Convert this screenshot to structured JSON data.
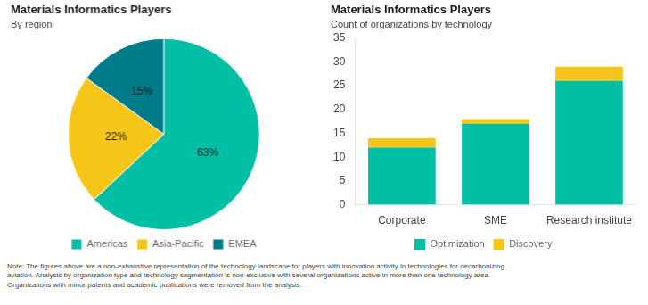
{
  "chart_data": [
    {
      "type": "pie",
      "title": "Materials Informatics Players",
      "subtitle": "By region",
      "categories": [
        "Americas",
        "Asia-Pacific",
        "EMEA"
      ],
      "values": [
        63,
        22,
        15
      ],
      "value_labels": [
        "63%",
        "22%",
        "15%"
      ],
      "colors": [
        "#00BFA5",
        "#F5C518",
        "#007B8A"
      ],
      "data_labels": true,
      "legend": "bottom"
    },
    {
      "type": "bar",
      "title": "Materials Informatics Players",
      "subtitle": "Count of organizations by technology",
      "categories": [
        "Corporate",
        "SME",
        "Research institute"
      ],
      "series": [
        {
          "name": "Optimization",
          "color": "#00BFA5",
          "values": [
            12,
            17,
            26
          ]
        },
        {
          "name": "Discovery",
          "color": "#F5C518",
          "values": [
            2,
            1,
            3
          ]
        }
      ],
      "stacked": true,
      "ylim": [
        0,
        35
      ],
      "yticks": [
        0,
        5,
        10,
        15,
        20,
        25,
        30,
        35
      ],
      "grid": false,
      "legend": "bottom"
    }
  ],
  "note": "Note: The figures above are a non-exhaustive representation of the technology landscape for players with innovation activity in technologies for decarbonizing\naviation. Analysis by organization type and technology segmentation is non-exclusive with several organizations active in more than one technology area.\nOrganizations with minor patents and academic publications were removed from the analysis."
}
